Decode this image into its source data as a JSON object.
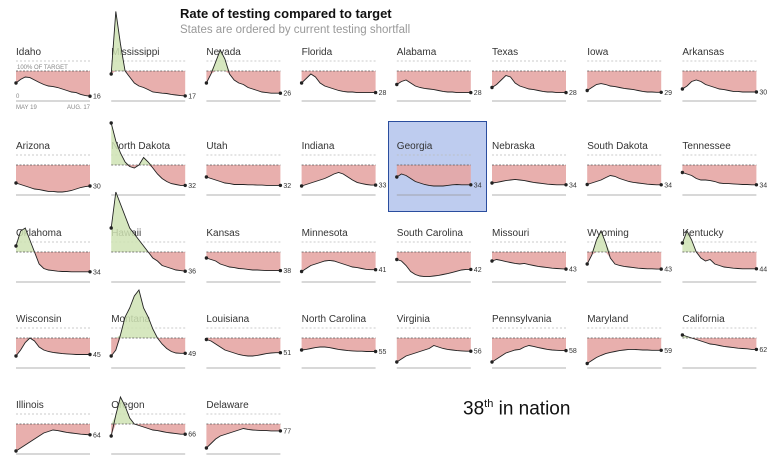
{
  "header": {
    "title": "Rate of testing compared to target",
    "subtitle": "States are ordered by current testing shortfall"
  },
  "note": {
    "rank": "38",
    "suffix": "th",
    "text": " in nation"
  },
  "colors": {
    "shortfall": "#e6a6a4",
    "above_target": "#cfe3b4",
    "highlight": "#5a7fd4",
    "line": "#222222"
  },
  "chart_data": {
    "type": "small-multiples-line",
    "title": "Rate of testing compared to target",
    "subtitle": "States are ordered by current testing shortfall",
    "target_label": "100% OF TARGET",
    "axis_start_label": "0",
    "x_start_label": "MAY 19",
    "x_end_label": "AUG. 17",
    "highlighted_state": "Georgia",
    "states": [
      {
        "name": "Idaho",
        "end": 16,
        "values": [
          60,
          72,
          80,
          78,
          70,
          62,
          55,
          50,
          48,
          45,
          40,
          35,
          30,
          28,
          22,
          18,
          16
        ]
      },
      {
        "name": "Mississippi",
        "end": 17,
        "values": [
          90,
          300,
          190,
          100,
          80,
          60,
          50,
          45,
          38,
          30,
          28,
          26,
          25,
          22,
          20,
          18,
          17
        ]
      },
      {
        "name": "Nevada",
        "end": 26,
        "values": [
          60,
          90,
          130,
          170,
          140,
          90,
          70,
          60,
          55,
          45,
          40,
          35,
          30,
          28,
          26,
          26,
          26
        ]
      },
      {
        "name": "Florida",
        "end": 28,
        "values": [
          60,
          75,
          90,
          80,
          60,
          50,
          45,
          40,
          35,
          32,
          30,
          30,
          28,
          28,
          28,
          28,
          28
        ]
      },
      {
        "name": "Alabama",
        "end": 28,
        "values": [
          55,
          65,
          70,
          60,
          50,
          45,
          42,
          40,
          38,
          35,
          32,
          30,
          30,
          28,
          28,
          28,
          28
        ]
      },
      {
        "name": "Texas",
        "end": 28,
        "values": [
          45,
          55,
          70,
          85,
          80,
          60,
          50,
          45,
          40,
          38,
          35,
          32,
          30,
          30,
          28,
          28,
          28
        ]
      },
      {
        "name": "Iowa",
        "end": 29,
        "values": [
          35,
          45,
          55,
          58,
          55,
          50,
          48,
          45,
          42,
          40,
          38,
          35,
          32,
          30,
          30,
          29,
          29
        ]
      },
      {
        "name": "Arkansas",
        "end": 30,
        "values": [
          40,
          50,
          65,
          70,
          65,
          55,
          50,
          45,
          40,
          38,
          35,
          32,
          32,
          30,
          30,
          30,
          30
        ]
      },
      {
        "name": "Arizona",
        "end": 30,
        "values": [
          40,
          35,
          30,
          25,
          20,
          18,
          15,
          12,
          12,
          10,
          10,
          12,
          15,
          20,
          25,
          28,
          30
        ]
      },
      {
        "name": "North Dakota",
        "end": 32,
        "values": [
          240,
          180,
          140,
          110,
          95,
          90,
          100,
          125,
          110,
          90,
          70,
          55,
          45,
          38,
          35,
          32,
          32
        ]
      },
      {
        "name": "Utah",
        "end": 32,
        "values": [
          60,
          55,
          50,
          45,
          40,
          38,
          35,
          35,
          35,
          34,
          34,
          33,
          33,
          32,
          32,
          32,
          32
        ]
      },
      {
        "name": "Indiana",
        "end": 33,
        "values": [
          30,
          35,
          40,
          45,
          50,
          55,
          62,
          70,
          75,
          70,
          60,
          50,
          42,
          38,
          35,
          33,
          33
        ]
      },
      {
        "name": "Georgia",
        "end": 34,
        "values": [
          60,
          70,
          65,
          55,
          45,
          40,
          35,
          32,
          30,
          30,
          30,
          32,
          34,
          35,
          34,
          34,
          34
        ]
      },
      {
        "name": "Nebraska",
        "end": 34,
        "values": [
          40,
          42,
          45,
          48,
          50,
          52,
          50,
          48,
          45,
          42,
          40,
          38,
          36,
          35,
          34,
          34,
          34
        ]
      },
      {
        "name": "South Dakota",
        "end": 34,
        "values": [
          35,
          40,
          45,
          50,
          58,
          65,
          62,
          55,
          50,
          45,
          42,
          40,
          38,
          36,
          35,
          34,
          34
        ]
      },
      {
        "name": "Tennessee",
        "end": 34,
        "values": [
          75,
          70,
          65,
          55,
          50,
          50,
          48,
          45,
          40,
          38,
          38,
          37,
          36,
          35,
          35,
          34,
          34
        ]
      },
      {
        "name": "Oklahoma",
        "end": 34,
        "values": [
          120,
          170,
          180,
          140,
          100,
          60,
          45,
          40,
          38,
          36,
          35,
          35,
          34,
          34,
          34,
          34,
          34
        ]
      },
      {
        "name": "Hawaii",
        "end": 36,
        "values": [
          180,
          300,
          260,
          220,
          180,
          160,
          140,
          120,
          100,
          80,
          70,
          55,
          50,
          45,
          40,
          38,
          36
        ]
      },
      {
        "name": "Kansas",
        "end": 38,
        "values": [
          80,
          75,
          70,
          60,
          55,
          50,
          48,
          45,
          44,
          42,
          40,
          40,
          39,
          38,
          38,
          38,
          38
        ]
      },
      {
        "name": "Minnesota",
        "end": 41,
        "values": [
          35,
          45,
          55,
          60,
          65,
          70,
          72,
          70,
          65,
          60,
          55,
          50,
          48,
          45,
          42,
          41,
          41
        ]
      },
      {
        "name": "South Carolina",
        "end": 42,
        "values": [
          75,
          70,
          55,
          35,
          25,
          20,
          18,
          18,
          20,
          22,
          25,
          28,
          32,
          36,
          40,
          42,
          42
        ]
      },
      {
        "name": "Missouri",
        "end": 43,
        "values": [
          70,
          75,
          72,
          68,
          65,
          62,
          60,
          62,
          58,
          55,
          52,
          50,
          48,
          46,
          45,
          44,
          43
        ]
      },
      {
        "name": "Wyoming",
        "end": 43,
        "values": [
          60,
          90,
          140,
          170,
          130,
          80,
          60,
          55,
          52,
          50,
          48,
          46,
          45,
          44,
          44,
          43,
          43
        ]
      },
      {
        "name": "Kentucky",
        "end": 44,
        "values": [
          130,
          170,
          140,
          100,
          80,
          70,
          75,
          60,
          55,
          50,
          48,
          46,
          45,
          44,
          44,
          44,
          44
        ]
      },
      {
        "name": "Wisconsin",
        "end": 45,
        "values": [
          40,
          60,
          85,
          100,
          90,
          70,
          60,
          55,
          52,
          50,
          48,
          47,
          46,
          45,
          45,
          45,
          45
        ]
      },
      {
        "name": "Montana",
        "end": 49,
        "values": [
          40,
          60,
          110,
          170,
          200,
          240,
          260,
          200,
          170,
          130,
          100,
          80,
          65,
          55,
          50,
          49,
          49
        ]
      },
      {
        "name": "Louisiana",
        "end": 51,
        "values": [
          95,
          90,
          80,
          70,
          60,
          55,
          50,
          45,
          42,
          40,
          40,
          42,
          45,
          48,
          50,
          51,
          51
        ]
      },
      {
        "name": "North Carolina",
        "end": 55,
        "values": [
          60,
          62,
          65,
          68,
          70,
          70,
          68,
          65,
          62,
          60,
          58,
          57,
          56,
          56,
          55,
          55,
          55
        ]
      },
      {
        "name": "Virginia",
        "end": 56,
        "values": [
          20,
          30,
          40,
          45,
          50,
          55,
          60,
          65,
          75,
          70,
          65,
          62,
          60,
          58,
          57,
          56,
          56
        ]
      },
      {
        "name": "Pennsylvania",
        "end": 58,
        "values": [
          20,
          30,
          40,
          50,
          55,
          60,
          62,
          70,
          75,
          72,
          68,
          65,
          62,
          60,
          59,
          58,
          58
        ]
      },
      {
        "name": "Maryland",
        "end": 59,
        "values": [
          15,
          25,
          35,
          42,
          48,
          52,
          55,
          58,
          60,
          62,
          62,
          61,
          60,
          60,
          59,
          59,
          59
        ]
      },
      {
        "name": "California",
        "end": 62,
        "values": [
          110,
          105,
          100,
          95,
          90,
          85,
          80,
          78,
          75,
          72,
          70,
          68,
          66,
          65,
          64,
          62,
          62
        ]
      },
      {
        "name": "Illinois",
        "end": 64,
        "values": [
          10,
          20,
          30,
          40,
          50,
          60,
          70,
          75,
          80,
          78,
          75,
          72,
          70,
          68,
          66,
          65,
          64
        ]
      },
      {
        "name": "Oregon",
        "end": 66,
        "values": [
          60,
          130,
          190,
          160,
          120,
          100,
          95,
          90,
          85,
          80,
          78,
          75,
          72,
          70,
          68,
          66,
          66
        ]
      },
      {
        "name": "Delaware",
        "end": 77,
        "values": [
          20,
          35,
          50,
          60,
          65,
          70,
          75,
          80,
          85,
          82,
          80,
          79,
          78,
          78,
          77,
          77,
          77
        ]
      }
    ]
  }
}
